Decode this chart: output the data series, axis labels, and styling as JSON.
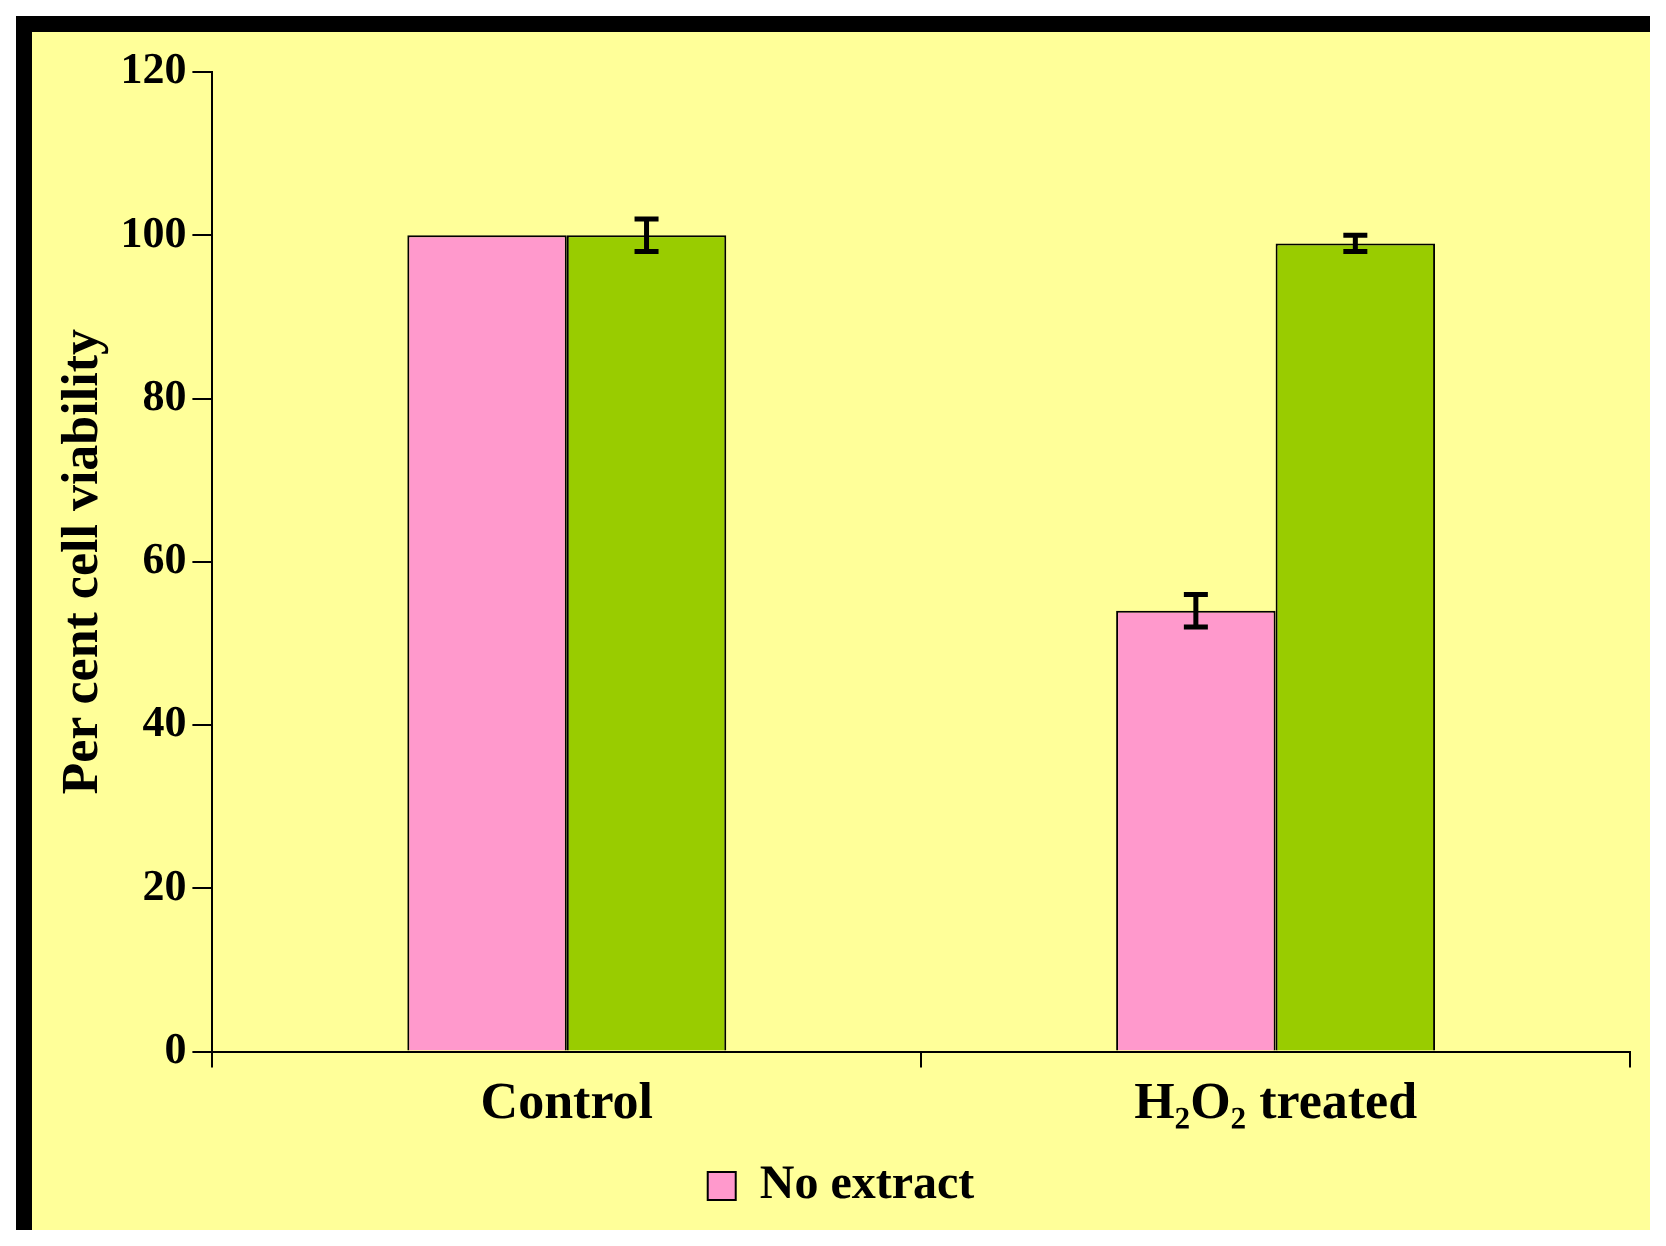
{
  "chart_data": {
    "type": "bar",
    "ylabel": "Per cent cell viability",
    "categories": [
      "Control",
      "H₂O₂ treated"
    ],
    "series": [
      {
        "name": "No extract",
        "color": "#ff99cc",
        "values": [
          100,
          54
        ],
        "errors": [
          null,
          2
        ]
      },
      {
        "color": "#99cc00",
        "values": [
          100,
          99
        ],
        "errors": [
          2,
          1
        ]
      }
    ],
    "ylim": [
      0,
      120
    ],
    "yticks": [
      0,
      20,
      40,
      60,
      80,
      100,
      120
    ],
    "grid": false,
    "legend": "bottom"
  }
}
